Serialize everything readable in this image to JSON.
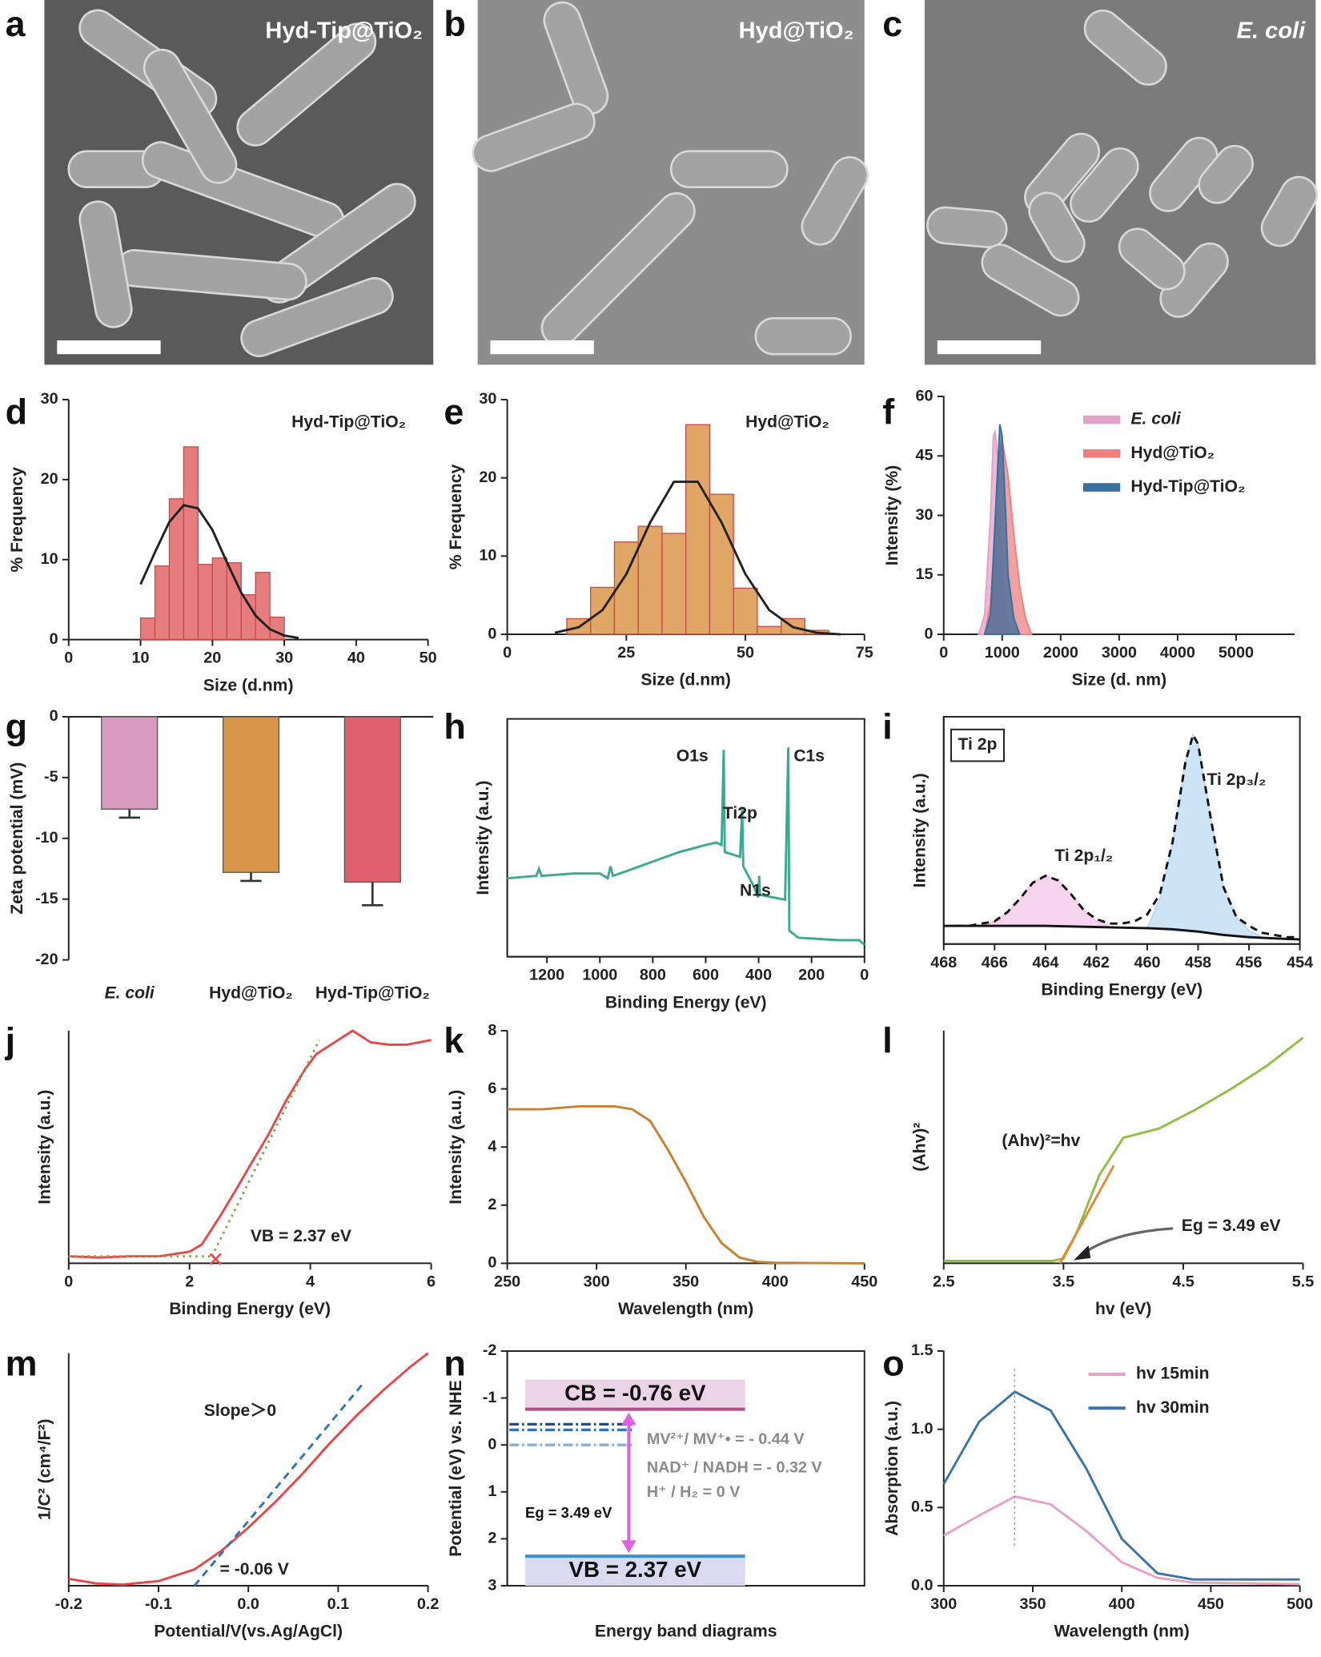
{
  "images": [
    {
      "panel": "a",
      "label": "Hyd-Tip@TiO₂"
    },
    {
      "panel": "b",
      "label": "Hyd@TiO₂"
    },
    {
      "panel": "c",
      "label": "E. coli"
    }
  ],
  "chart_data": [
    {
      "type": "histogram",
      "panel": "d",
      "xlabel": "Size (d.nm)",
      "ylabel": "% Frequency",
      "annotations": [
        "Hyd-Tip@TiO₂"
      ],
      "bins": [
        10,
        12,
        14,
        16,
        18,
        20,
        22,
        24,
        26,
        28,
        30
      ],
      "values": [
        2.7,
        9.2,
        17.6,
        24.1,
        9.4,
        10.2,
        9.6,
        5.6,
        8.4,
        2.8
      ],
      "color": "#e06666",
      "fit": {
        "color": "#222222",
        "x": [
          10,
          12,
          14,
          16,
          18,
          20,
          22,
          24,
          26,
          28,
          30,
          32
        ],
        "values": [
          6.9,
          10.9,
          14.7,
          16.8,
          16.4,
          13.7,
          9.7,
          5.9,
          3.0,
          1.3,
          0.5,
          0.2
        ]
      },
      "xlim": [
        0,
        50
      ],
      "xticks": [
        0,
        10,
        20,
        30,
        40,
        50
      ],
      "ylim": [
        0,
        30
      ],
      "yticks": [
        0,
        10,
        20,
        30
      ]
    },
    {
      "type": "histogram",
      "panel": "e",
      "xlabel": "Size (d.nm)",
      "ylabel": "% Frequency",
      "annotations": [
        "Hyd@TiO₂"
      ],
      "bins": [
        12.5,
        17.5,
        22.5,
        27.5,
        32.5,
        37.5,
        42.5,
        47.5,
        52.5,
        57.5,
        62.5,
        67.5
      ],
      "values": [
        2,
        6,
        11.8,
        13.8,
        12.9,
        26.8,
        17.9,
        5.9,
        1,
        2,
        0.5
      ],
      "color": "#d9964a",
      "fit": {
        "color": "#222222",
        "x": [
          10,
          15,
          20,
          25,
          30,
          35,
          40,
          45,
          50,
          55,
          60,
          65,
          70
        ],
        "values": [
          0.2,
          0.9,
          3.1,
          7.7,
          14.3,
          19.5,
          19.5,
          14.3,
          7.7,
          3.1,
          0.9,
          0.2,
          0
        ]
      },
      "xlim": [
        0,
        75
      ],
      "xticks": [
        0,
        25,
        50,
        75
      ],
      "ylim": [
        0,
        30
      ],
      "yticks": [
        0,
        10,
        20,
        30
      ]
    },
    {
      "type": "area",
      "panel": "f",
      "xlabel": "Size (d. nm)",
      "ylabel": "Intensity (%)",
      "legend": "upper right",
      "series": [
        {
          "name": "E. coli",
          "color": "#e3a3c9",
          "filled": true,
          "x": [
            600,
            700,
            800,
            850,
            880,
            920,
            960,
            1000,
            1100,
            1200
          ],
          "values": [
            0,
            5,
            30,
            50,
            51,
            45,
            30,
            15,
            3,
            0
          ]
        },
        {
          "name": "Hyd@TiO₂",
          "color": "#ef8080",
          "filled": true,
          "x": [
            700,
            800,
            900,
            950,
            1000,
            1100,
            1200,
            1300,
            1400,
            1500
          ],
          "values": [
            0,
            8,
            30,
            45,
            49,
            40,
            25,
            12,
            4,
            0
          ]
        },
        {
          "name": "Hyd-Tip@TiO₂",
          "color": "#3a6f9e",
          "filled": true,
          "x": [
            700,
            800,
            900,
            960,
            1000,
            1060,
            1100,
            1200,
            1300
          ],
          "values": [
            0,
            5,
            35,
            53,
            50,
            30,
            15,
            4,
            0
          ]
        }
      ],
      "xlim": [
        0,
        6000
      ],
      "xticks": [
        0,
        1000,
        2000,
        3000,
        4000,
        5000
      ],
      "ylim": [
        0,
        60
      ],
      "yticks": [
        0,
        15,
        30,
        45,
        60
      ]
    },
    {
      "type": "bar",
      "panel": "g",
      "ylabel": "Zeta potential (mV)",
      "categories": [
        "E. coli",
        "Hyd@TiO₂",
        "Hyd-Tip@TiO₂"
      ],
      "values": [
        -7.6,
        -12.8,
        -13.6
      ],
      "errors": [
        0.7,
        0.7,
        1.9
      ],
      "colors": [
        "#d99abf",
        "#d9964a",
        "#e06070"
      ],
      "ylim": [
        -20,
        0
      ],
      "yticks": [
        -20,
        -15,
        -10,
        -5,
        0
      ]
    },
    {
      "type": "line",
      "panel": "h",
      "frame": "box",
      "xlabel": "Binding Energy (eV)",
      "ylabel": "Intensity (a.u.)",
      "annotations": [
        "O1s",
        "Ti2p",
        "N1s",
        "C1s"
      ],
      "series": [
        {
          "color": "#3aaa90",
          "x": [
            1350,
            1240,
            1230,
            1220,
            1100,
            1000,
            970,
            960,
            950,
            900,
            800,
            700,
            600,
            560,
            540,
            532,
            528,
            470,
            462,
            458,
            420,
            402,
            398,
            395,
            300,
            288,
            284,
            250,
            100,
            20,
            0
          ],
          "values": [
            33,
            34,
            37,
            34,
            35,
            35,
            33,
            38,
            34,
            36,
            40,
            44,
            47,
            48,
            47,
            87,
            44,
            42,
            62,
            38,
            30,
            25,
            34,
            26,
            24,
            88,
            11,
            8,
            7,
            7,
            5
          ]
        }
      ],
      "xlim": [
        1350,
        0
      ],
      "xticks": [
        1200,
        1000,
        800,
        600,
        400,
        200,
        0
      ],
      "ylim": [
        0,
        100
      ]
    },
    {
      "type": "line",
      "panel": "i",
      "frame": "box",
      "xlabel": "Binding Energy (eV)",
      "ylabel": "Intensity (a.u.)",
      "annotations": [
        "Ti 2p",
        "Ti 2p₃/₂",
        "Ti 2p₁/₂"
      ],
      "series": [
        {
          "color": "#f3c6e8",
          "filled": true,
          "x": [
            466.5,
            466,
            465.5,
            465,
            464.5,
            464,
            463.5,
            463,
            462.5,
            462,
            461.5
          ],
          "values": [
            8,
            10,
            14,
            20,
            27,
            30,
            28,
            22,
            15,
            10,
            8
          ]
        },
        {
          "color": "#bcdaf3",
          "filled": true,
          "x": [
            460,
            459.5,
            459,
            458.5,
            458.2,
            458,
            457.5,
            457,
            456.5,
            456,
            455.5
          ],
          "values": [
            7,
            20,
            44,
            80,
            92,
            88,
            55,
            25,
            12,
            6,
            3
          ]
        },
        {
          "color": "#111111",
          "x": [
            468,
            466,
            464,
            462,
            460,
            459,
            458,
            457,
            456,
            455,
            454
          ],
          "values": [
            8,
            8,
            8,
            7.5,
            7,
            6.5,
            5.5,
            4,
            3,
            2.5,
            2
          ]
        },
        {
          "color": "#111111",
          "linestyle": "dashed",
          "x": [
            467.5,
            467,
            466.5,
            466,
            465.5,
            465,
            464.5,
            464,
            463.5,
            463,
            462.5,
            462,
            461.5,
            461,
            460.5,
            460,
            459.5,
            459,
            458.5,
            458.2,
            458,
            457.5,
            457,
            456.5,
            456,
            455.5,
            455,
            454.5,
            454
          ],
          "values": [
            8,
            8,
            9,
            10,
            14,
            20,
            27,
            30,
            28,
            22,
            15,
            11,
            9,
            9,
            10,
            13,
            22,
            45,
            80,
            92,
            88,
            55,
            25,
            12,
            8,
            5,
            4,
            3,
            3
          ]
        }
      ],
      "xlim": [
        468,
        454
      ],
      "xticks": [
        468,
        466,
        464,
        462,
        460,
        458,
        456,
        454
      ],
      "ylim": [
        0,
        100
      ]
    },
    {
      "type": "line",
      "panel": "j",
      "xlabel": "Binding Energy (eV)",
      "ylabel": "Intensity (a.u.)",
      "annotations": [
        "VB = 2.37 eV"
      ],
      "series": [
        {
          "color": "#e8474a",
          "x": [
            0,
            0.5,
            1,
            1.5,
            2,
            2.2,
            2.5,
            2.8,
            3,
            3.3,
            3.6,
            3.9,
            4.1,
            4.4,
            4.7,
            5,
            5.3,
            5.6,
            6
          ],
          "values": [
            3,
            2.5,
            3,
            3,
            5,
            8,
            20,
            33,
            42,
            55,
            70,
            83,
            90,
            95,
            100,
            95,
            94,
            94,
            96
          ]
        },
        {
          "color": "#7aa84a",
          "linestyle": "dotted",
          "x": [
            2.37,
            4.15
          ],
          "values": [
            3,
            96
          ]
        },
        {
          "color": "#7aa84a",
          "linestyle": "dotted",
          "x": [
            0,
            2.37
          ],
          "values": [
            3,
            3
          ]
        }
      ],
      "xlim": [
        0,
        6
      ],
      "xticks": [
        0,
        2,
        4,
        6
      ],
      "ylim": [
        0,
        100
      ]
    },
    {
      "type": "line",
      "panel": "k",
      "xlabel": "Wavelength (nm)",
      "ylabel": "Intensity (a.u.)",
      "series": [
        {
          "color": "#c98030",
          "x": [
            250,
            270,
            290,
            310,
            320,
            330,
            340,
            350,
            360,
            370,
            380,
            390,
            400,
            450
          ],
          "values": [
            5.3,
            5.3,
            5.4,
            5.4,
            5.3,
            4.9,
            3.9,
            2.8,
            1.6,
            0.7,
            0.2,
            0.05,
            0.02,
            0
          ]
        }
      ],
      "xlim": [
        250,
        450
      ],
      "xticks": [
        250,
        300,
        350,
        400,
        450
      ],
      "ylim": [
        0,
        8
      ],
      "yticks": [
        0,
        2,
        4,
        6,
        8
      ]
    },
    {
      "type": "line",
      "panel": "l",
      "xlabel": "hv (eV)",
      "ylabel": "(Ahv)²",
      "annotations": [
        "(Ahv)²=hv",
        "Eg = 3.49 eV"
      ],
      "series": [
        {
          "color": "#8fbf40",
          "x": [
            2.5,
            3,
            3.4,
            3.5,
            3.6,
            3.7,
            3.8,
            3.9,
            4,
            4.3,
            4.6,
            4.9,
            5.2,
            5.5
          ],
          "values": [
            1,
            1,
            1,
            2,
            12,
            25,
            38,
            46,
            54,
            58,
            66,
            75,
            85,
            97
          ]
        },
        {
          "color": "#e08a3a",
          "x": [
            3.47,
            3.92
          ],
          "values": [
            0,
            42
          ]
        }
      ],
      "xlim": [
        2.5,
        5.5
      ],
      "xticks": [
        2.5,
        3.5,
        4.5,
        5.5
      ],
      "ylim": [
        0,
        100
      ]
    },
    {
      "type": "line",
      "panel": "m",
      "xlabel": "Potential/V(vs.Ag/AgCl)",
      "ylabel": "1/C² (cm⁴/F²)",
      "annotations": [
        "Slope＞0",
        "= -0.06 V"
      ],
      "series": [
        {
          "color": "#e8474a",
          "x": [
            -0.2,
            -0.17,
            -0.14,
            -0.1,
            -0.06,
            -0.03,
            0,
            0.03,
            0.06,
            0.09,
            0.12,
            0.15,
            0.18,
            0.2
          ],
          "values": [
            3,
            1,
            0.5,
            2,
            7,
            15,
            25,
            36,
            48,
            61,
            73,
            84,
            94,
            100
          ]
        },
        {
          "color": "#2e75b6",
          "linestyle": "dashed",
          "x": [
            -0.06,
            0.13
          ],
          "values": [
            0,
            88
          ]
        }
      ],
      "xlim": [
        -0.2,
        0.2
      ],
      "xticks": [
        -0.2,
        -0.1,
        {
          "value": 0,
          "label": "0.0"
        },
        0.1,
        0.2
      ],
      "ylim": [
        0,
        100
      ]
    },
    {
      "type": "band",
      "panel": "n",
      "frame": "box",
      "xlabel": "Energy band diagrams",
      "ylabel": "Potential (eV) vs. NHE",
      "bands": [
        {
          "label": "CB = -0.76 eV",
          "value": -0.76,
          "color": "#b0508a",
          "fill": "#ead3e4"
        },
        {
          "label": "VB = 2.37 eV",
          "value": 2.37,
          "color": "#3a8fd0",
          "fill": "#d9d9f0"
        }
      ],
      "levels": [
        {
          "label": "MV²⁺/ MV⁺• = - 0.44 V",
          "value": -0.44,
          "color": "#1f4e79"
        },
        {
          "label": "NAD⁺ / NADH = - 0.32 V",
          "value": -0.32,
          "color": "#2e75b6"
        },
        {
          "label": "H⁺ / H₂ = 0 V",
          "value": 0,
          "color": "#7fb2e0"
        }
      ],
      "gap_label": "Eg = 3.49 eV",
      "arrow_color": "#e060e0",
      "ylim": [
        3,
        -2
      ],
      "yticks": [
        -2,
        -1,
        0,
        1,
        2,
        3
      ]
    },
    {
      "type": "line",
      "panel": "o",
      "xlabel": "Wavelength (nm)",
      "ylabel": "Absorption (a.u.)",
      "legend": "upper right",
      "series": [
        {
          "name": "hv 15min",
          "color": "#e8a0c8",
          "x": [
            300,
            320,
            340,
            360,
            380,
            400,
            420,
            440,
            500
          ],
          "values": [
            0.32,
            0.45,
            0.57,
            0.52,
            0.35,
            0.15,
            0.05,
            0.02,
            0.01
          ]
        },
        {
          "name": "hv 30min",
          "color": "#3a73a8",
          "x": [
            300,
            320,
            340,
            360,
            380,
            400,
            420,
            440,
            500
          ],
          "values": [
            0.65,
            1.05,
            1.24,
            1.12,
            0.75,
            0.3,
            0.08,
            0.04,
            0.04
          ]
        }
      ],
      "xlim": [
        300,
        500
      ],
      "xticks": [
        300,
        350,
        400,
        450,
        500
      ],
      "ylim": [
        0,
        1.5
      ],
      "yticks": [
        {
          "value": 0,
          "label": "0.0"
        },
        0.5,
        {
          "value": 1,
          "label": "1.0"
        },
        1.5
      ]
    }
  ]
}
